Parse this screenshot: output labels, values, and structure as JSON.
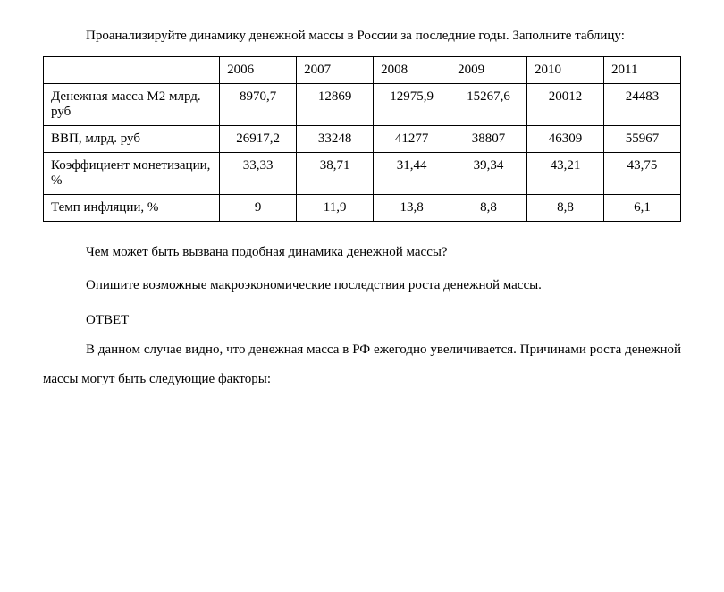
{
  "intro": {
    "line1": "Проанализируйте динамику денежной массы в России за последние",
    "line2": "годы. Заполните таблицу:"
  },
  "table": {
    "columns": [
      "",
      "2006",
      "2007",
      "2008",
      "2009",
      "2010",
      "2011"
    ],
    "rows": [
      {
        "label": "Денежная масса М2 млрд. руб",
        "values": [
          "8970,7",
          "12869",
          "12975,9",
          "15267,6",
          "20012",
          "24483"
        ]
      },
      {
        "label": "ВВП, млрд. руб",
        "values": [
          "26917,2",
          "33248",
          "41277",
          "38807",
          "46309",
          "55967"
        ]
      },
      {
        "label": "Коэффициент монетизации, %",
        "values": [
          "33,33",
          "38,71",
          "31,44",
          "39,34",
          "43,21",
          "43,75"
        ]
      },
      {
        "label": "Темп инфляции, %",
        "values": [
          "9",
          "11,9",
          "13,8",
          "8,8",
          "8,8",
          "6,1"
        ]
      }
    ],
    "border_color": "#000000",
    "background_color": "#ffffff",
    "header_fontsize": 15,
    "cell_fontsize": 15,
    "label_col_width": 172,
    "data_col_width": 75
  },
  "questions": {
    "q1": "Чем может быть вызвана подобная динамика денежной массы?",
    "q2": "Опишите возможные макроэкономические последствия роста денежной массы."
  },
  "answer": {
    "label": "ОТВЕТ",
    "p1_a": "В данном случае видно, что  денежная масса в РФ ежегодно",
    "p1_b": "увеличивается. Причинами роста денежной массы могут быть следующие",
    "p1_c": "факторы:"
  },
  "style": {
    "text_color": "#000000",
    "bg_color": "#ffffff",
    "font_family": "Times New Roman",
    "base_fontsize": 15,
    "line_height": 2.2
  }
}
